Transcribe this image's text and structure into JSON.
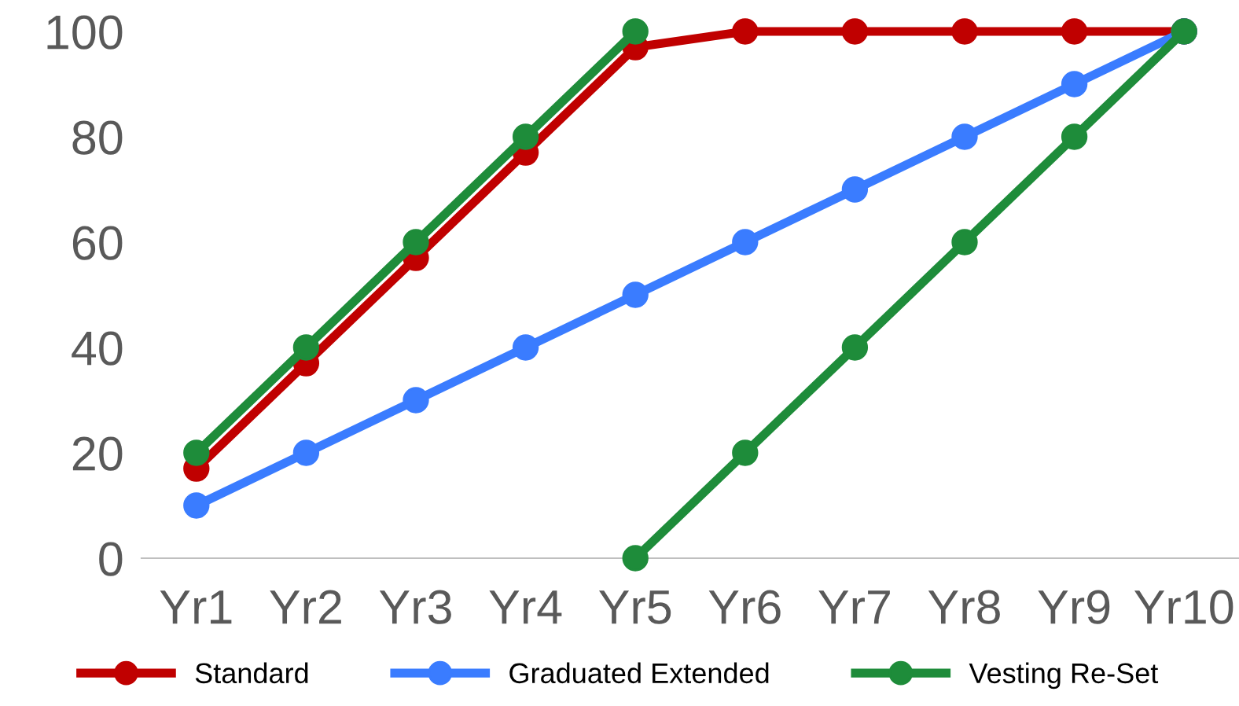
{
  "chart_data": {
    "type": "line",
    "categories": [
      "Yr1",
      "Yr2",
      "Yr3",
      "Yr4",
      "Yr5",
      "Yr6",
      "Yr7",
      "Yr8",
      "Yr9",
      "Yr10"
    ],
    "series": [
      {
        "name": "Standard",
        "color": "#c00000",
        "values": [
          17,
          37,
          57,
          77,
          97,
          100,
          100,
          100,
          100,
          100
        ]
      },
      {
        "name": "Graduated Extended",
        "color": "#3a7cff",
        "values": [
          10,
          20,
          30,
          40,
          50,
          60,
          70,
          80,
          90,
          100
        ]
      },
      {
        "color": "#1e8c3a",
        "values": [
          20,
          40,
          60,
          80,
          100,
          null,
          null,
          null,
          null,
          null
        ]
      },
      {
        "name": "Vesting Re-Set",
        "color": "#1e8c3a",
        "values": [
          null,
          null,
          null,
          null,
          0,
          20,
          40,
          60,
          80,
          100
        ]
      }
    ],
    "ylim": [
      0,
      100
    ],
    "yticks": [
      0,
      20,
      40,
      60,
      80,
      100
    ],
    "grid": false,
    "legend": "bottom",
    "marker": "circle",
    "line_style": "solid"
  }
}
